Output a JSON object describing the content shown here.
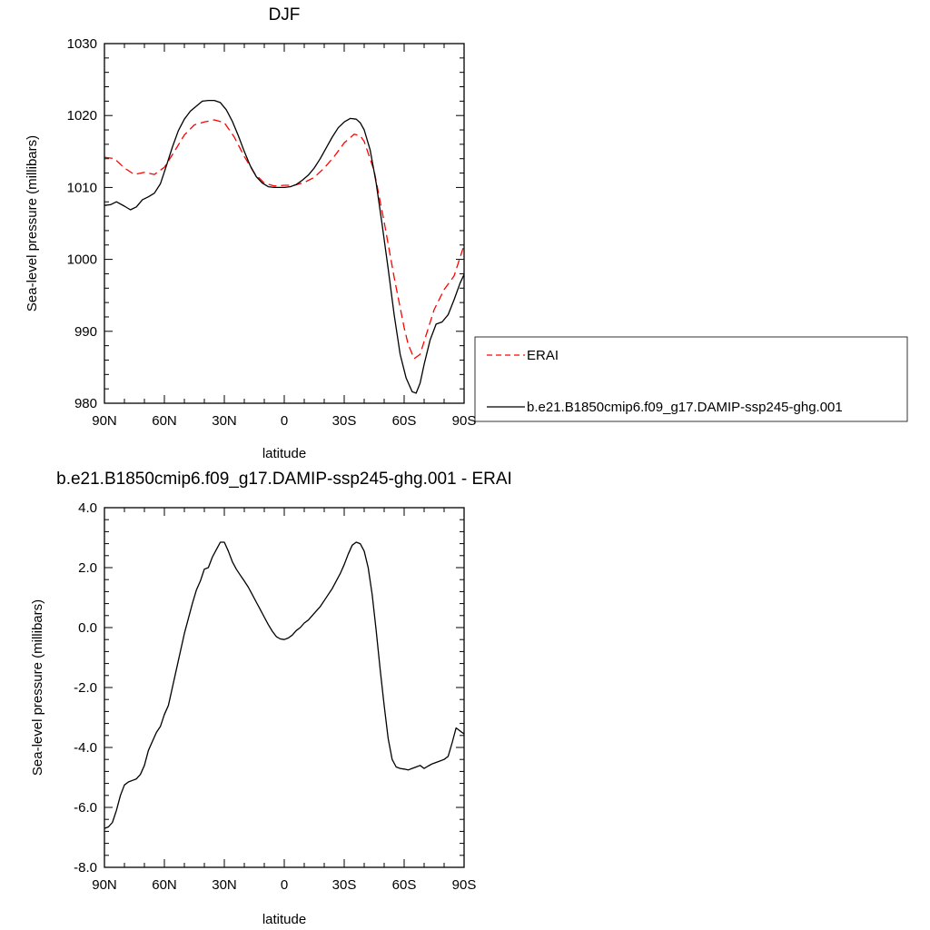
{
  "chart_data": [
    {
      "type": "line",
      "title": "DJF",
      "xlabel": "latitude",
      "ylabel": "Sea-level pressure (millibars)",
      "x_tick_labels": [
        "90N",
        "60N",
        "30N",
        "0",
        "30S",
        "60S",
        "90S"
      ],
      "x_tick_values": [
        90,
        60,
        30,
        0,
        -30,
        -60,
        -90
      ],
      "xlim": [
        90,
        -90
      ],
      "y_tick_labels": [
        "980",
        "990",
        "1000",
        "1010",
        "1020",
        "1030"
      ],
      "y_tick_values": [
        980,
        990,
        1000,
        1010,
        1020,
        1030
      ],
      "ylim": [
        980,
        1030
      ],
      "legend_position": "right",
      "series": [
        {
          "name": "ERAI",
          "color": "#ff0000",
          "dash": "dashed",
          "x": [
            90,
            85,
            80,
            75,
            70,
            65,
            60,
            55,
            50,
            45,
            40,
            35,
            30,
            25,
            20,
            15,
            10,
            5,
            0,
            -5,
            -10,
            -15,
            -20,
            -25,
            -30,
            -35,
            -38,
            -40,
            -45,
            -50,
            -55,
            -60,
            -62,
            -65,
            -68,
            -70,
            -75,
            -80,
            -85,
            -90
          ],
          "values": [
            1014.2,
            1014.0,
            1012.7,
            1011.8,
            1012.1,
            1011.8,
            1012.8,
            1015.0,
            1017.3,
            1018.7,
            1019.1,
            1019.4,
            1019.0,
            1017.0,
            1014.3,
            1012.0,
            1010.6,
            1010.2,
            1010.3,
            1010.3,
            1010.7,
            1011.4,
            1012.7,
            1014.3,
            1016.2,
            1017.4,
            1017.2,
            1016.4,
            1012.3,
            1005.2,
            997.5,
            990.5,
            988.2,
            986.2,
            986.8,
            988.6,
            993.0,
            995.8,
            997.7,
            1002.0
          ]
        },
        {
          "name": "b.e21.B1850cmip6.f09_g17.DAMIP-ssp245-ghg.001",
          "color": "#000000",
          "dash": "solid",
          "x": [
            90,
            87,
            84,
            80,
            77,
            74,
            71,
            68,
            65,
            62,
            59,
            56,
            53,
            50,
            47,
            44,
            41,
            38,
            35,
            32,
            29,
            26,
            23,
            20,
            17,
            14,
            11,
            8,
            5,
            2,
            0,
            -3,
            -6,
            -9,
            -12,
            -15,
            -18,
            -21,
            -24,
            -27,
            -30,
            -33,
            -36,
            -38,
            -40,
            -43,
            -46,
            -49,
            -52,
            -55,
            -58,
            -61,
            -64,
            -66,
            -68,
            -70,
            -73,
            -76,
            -79,
            -82,
            -85,
            -88,
            -90
          ],
          "values": [
            1007.5,
            1007.6,
            1008.0,
            1007.4,
            1006.9,
            1007.3,
            1008.3,
            1008.7,
            1009.2,
            1010.5,
            1013.0,
            1015.6,
            1017.9,
            1019.5,
            1020.6,
            1021.3,
            1022.0,
            1022.1,
            1022.1,
            1021.8,
            1020.8,
            1019.2,
            1017.2,
            1015.0,
            1013.0,
            1011.5,
            1010.6,
            1010.1,
            1010.0,
            1010.0,
            1010.0,
            1010.1,
            1010.4,
            1011.0,
            1011.7,
            1012.7,
            1014.0,
            1015.5,
            1017.0,
            1018.3,
            1019.1,
            1019.6,
            1019.5,
            1019.0,
            1018.0,
            1015.2,
            1010.6,
            1004.8,
            998.7,
            992.3,
            986.8,
            983.5,
            981.6,
            981.4,
            982.8,
            985.4,
            988.8,
            991.0,
            991.3,
            992.3,
            994.4,
            996.7,
            997.9
          ]
        }
      ]
    },
    {
      "type": "line",
      "title": "b.e21.B1850cmip6.f09_g17.DAMIP-ssp245-ghg.001 - ERAI",
      "xlabel": "latitude",
      "ylabel": "Sea-level pressure (millibars)",
      "x_tick_labels": [
        "90N",
        "60N",
        "30N",
        "0",
        "30S",
        "60S",
        "90S"
      ],
      "x_tick_values": [
        90,
        60,
        30,
        0,
        -30,
        -60,
        -90
      ],
      "xlim": [
        90,
        -90
      ],
      "y_tick_labels": [
        "-8.0",
        "-6.0",
        "-4.0",
        "-2.0",
        "0.0",
        "2.0",
        "4.0"
      ],
      "y_tick_values": [
        -8,
        -6,
        -4,
        -2,
        0,
        2,
        4
      ],
      "ylim": [
        -8,
        4
      ],
      "series": [
        {
          "color": "#000000",
          "dash": "solid",
          "x": [
            90,
            88,
            86,
            84,
            82,
            80,
            78,
            76,
            74,
            72,
            70,
            68,
            66,
            64,
            62,
            60,
            58,
            56,
            54,
            52,
            50,
            48,
            46,
            44,
            42,
            40,
            38,
            36,
            34,
            32,
            30,
            28,
            26,
            24,
            22,
            20,
            18,
            16,
            14,
            12,
            10,
            8,
            6,
            4,
            2,
            0,
            -2,
            -4,
            -6,
            -8,
            -10,
            -12,
            -14,
            -16,
            -18,
            -20,
            -22,
            -24,
            -26,
            -28,
            -30,
            -32,
            -34,
            -36,
            -38,
            -40,
            -42,
            -44,
            -46,
            -48,
            -50,
            -52,
            -54,
            -56,
            -58,
            -60,
            -62,
            -64,
            -66,
            -68,
            -70,
            -72,
            -74,
            -76,
            -78,
            -80,
            -82,
            -84,
            -86,
            -88,
            -90
          ],
          "values": [
            -6.7,
            -6.65,
            -6.5,
            -6.1,
            -5.6,
            -5.25,
            -5.15,
            -5.1,
            -5.05,
            -4.9,
            -4.6,
            -4.1,
            -3.8,
            -3.5,
            -3.3,
            -2.9,
            -2.6,
            -2.0,
            -1.4,
            -0.8,
            -0.2,
            0.3,
            0.8,
            1.25,
            1.55,
            1.95,
            2.0,
            2.35,
            2.6,
            2.85,
            2.85,
            2.55,
            2.2,
            1.95,
            1.75,
            1.55,
            1.35,
            1.1,
            0.85,
            0.6,
            0.35,
            0.1,
            -0.12,
            -0.3,
            -0.38,
            -0.4,
            -0.35,
            -0.25,
            -0.1,
            0.0,
            0.15,
            0.25,
            0.4,
            0.55,
            0.7,
            0.9,
            1.1,
            1.3,
            1.55,
            1.8,
            2.1,
            2.45,
            2.75,
            2.85,
            2.8,
            2.55,
            2.0,
            1.1,
            -0.1,
            -1.4,
            -2.6,
            -3.7,
            -4.4,
            -4.65,
            -4.7,
            -4.72,
            -4.75,
            -4.7,
            -4.65,
            -4.6,
            -4.7,
            -4.62,
            -4.55,
            -4.5,
            -4.45,
            -4.4,
            -4.3,
            -3.85,
            -3.35,
            -3.45,
            -3.55
          ]
        }
      ]
    }
  ]
}
